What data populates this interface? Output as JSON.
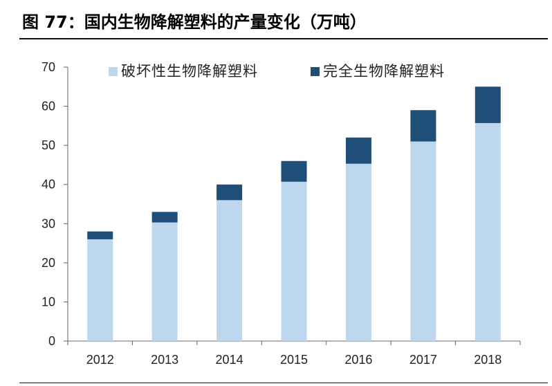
{
  "header": {
    "title": "图 77：国内生物降解塑料的产量变化（万吨）"
  },
  "chart_data": {
    "type": "bar",
    "stacked": true,
    "categories": [
      "2012",
      "2013",
      "2014",
      "2015",
      "2016",
      "2017",
      "2018"
    ],
    "series": [
      {
        "name": "破坏性生物降解塑料",
        "values": [
          26,
          30.3,
          36,
          40.7,
          45.3,
          51,
          55.7
        ],
        "color": "#bdd7ee"
      },
      {
        "name": "完全生物降解塑料",
        "values": [
          2,
          2.7,
          4,
          5.3,
          6.7,
          8,
          9.3
        ],
        "color": "#1f4e79"
      }
    ],
    "ylim": [
      0,
      70
    ],
    "yticks": [
      0,
      10,
      20,
      30,
      40,
      50,
      60,
      70
    ],
    "legend_position": "top",
    "grid": false
  }
}
